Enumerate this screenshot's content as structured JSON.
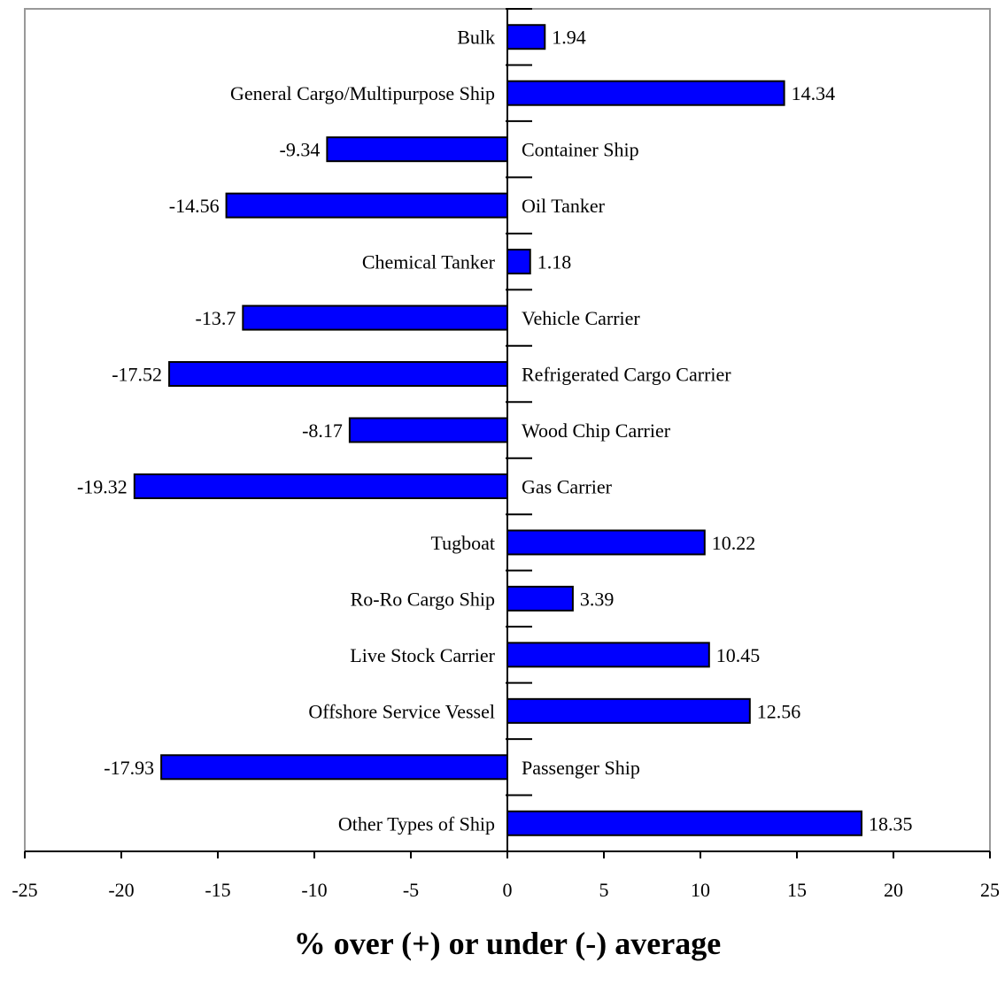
{
  "chart_data": {
    "type": "bar",
    "orientation": "horizontal",
    "title": "",
    "xlabel": "% over (+) or under (-) average",
    "ylabel": "",
    "xlim": [
      -25,
      25
    ],
    "x_ticks": [
      -25,
      -20,
      -15,
      -10,
      -5,
      0,
      5,
      10,
      15,
      20,
      25
    ],
    "grid": false,
    "colors": {
      "bar": "#0000ff",
      "outline": "#000000",
      "frame": "#999999"
    },
    "categories": [
      "Bulk",
      "General Cargo/Multipurpose Ship",
      "Container Ship",
      "Oil  Tanker",
      "Chemical Tanker",
      "Vehicle Carrier",
      "Refrigerated Cargo Carrier",
      "Wood Chip Carrier",
      "Gas  Carrier",
      "Tugboat",
      "Ro-Ro Cargo Ship",
      "Live Stock Carrier",
      "Offshore Service Vessel",
      "Passenger Ship",
      "Other Types of Ship"
    ],
    "values": [
      1.94,
      14.34,
      -9.34,
      -14.56,
      1.18,
      -13.7,
      -17.52,
      -8.17,
      -19.32,
      10.22,
      3.39,
      10.45,
      12.56,
      -17.93,
      18.35
    ],
    "value_labels": [
      "1.94",
      "14.34",
      "-9.34",
      "-14.56",
      "1.18",
      "-13.7",
      "-17.52",
      "-8.17",
      "-19.32",
      "10.22",
      "3.39",
      "10.45",
      "12.56",
      "-17.93",
      "18.35"
    ]
  }
}
